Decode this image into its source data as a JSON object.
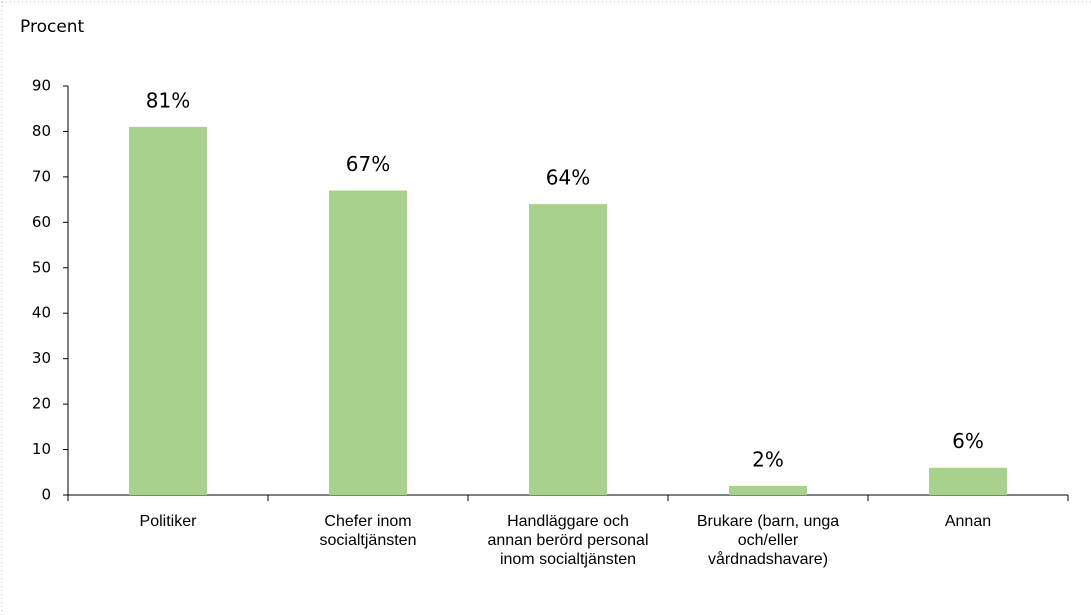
{
  "chart_data": {
    "type": "bar",
    "y_label": "Procent",
    "categories": [
      "Politiker",
      "Chefer inom socialtjänsten",
      "Handläggare och annan berörd personal inom socialtjänsten",
      "Brukare (barn, unga och/eller vårdnadshavare)",
      "Annan"
    ],
    "values": [
      81,
      67,
      64,
      2,
      6
    ],
    "value_labels": [
      "81%",
      "67%",
      "64%",
      "2%",
      "6%"
    ],
    "color": "#a9d18e",
    "ylim": [
      0,
      90
    ],
    "yticks": [
      0,
      10,
      20,
      30,
      40,
      50,
      60,
      70,
      80,
      90
    ],
    "grid": false
  }
}
